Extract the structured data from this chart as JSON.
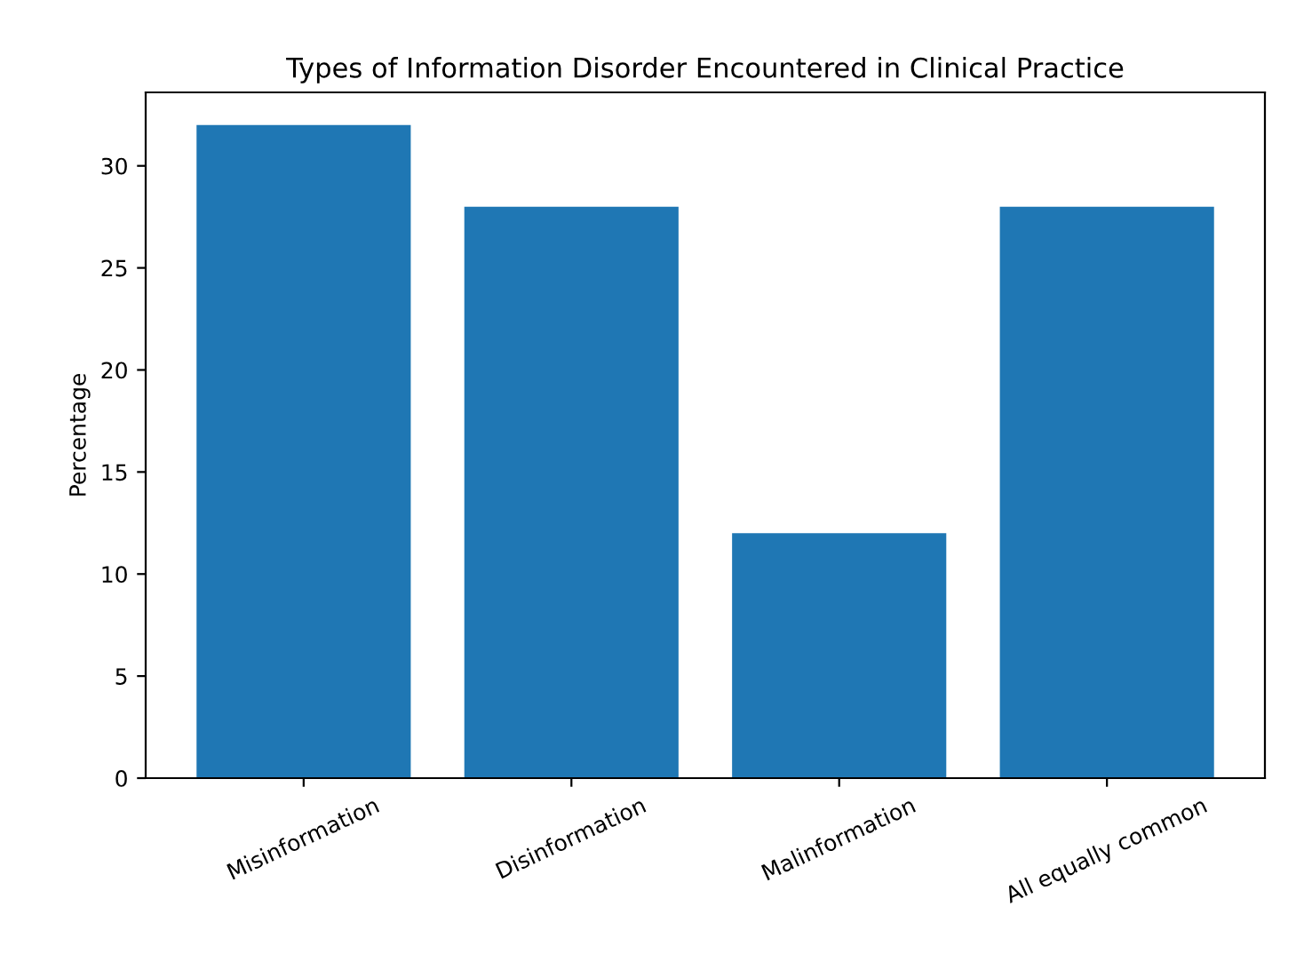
{
  "chart_data": {
    "type": "bar",
    "title": "Types of Information Disorder Encountered in Clinical Practice",
    "ylabel": "Percentage",
    "categories": [
      "Misinformation",
      "Disinformation",
      "Malinformation",
      "All equally common"
    ],
    "values": [
      32,
      28,
      12,
      28
    ],
    "color": "#1f77b4",
    "ylim": [
      0,
      33.6
    ],
    "yticks": [
      0,
      5,
      10,
      15,
      20,
      25,
      30
    ],
    "grid": false
  }
}
